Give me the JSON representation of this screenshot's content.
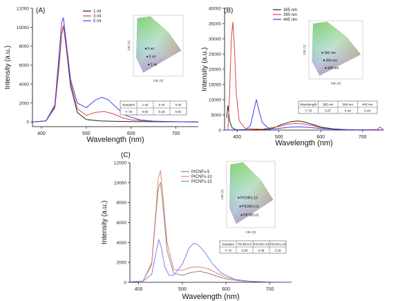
{
  "chart_data": [
    {
      "type": "line",
      "panel_label": "(A)",
      "xlabel": "Wavelength (nm)",
      "ylabel": "Intensity (a.u.)",
      "xlim": [
        380,
        750
      ],
      "ylim": [
        -500,
        12000
      ],
      "xticks": [
        400,
        500,
        600,
        700
      ],
      "yticks": [
        0,
        2000,
        4000,
        6000,
        8000,
        10000,
        12000
      ],
      "legend_position": "top-right",
      "series": [
        {
          "name": "1 ml",
          "color": "#222222",
          "x": [
            380,
            410,
            430,
            440,
            445,
            449,
            455,
            465,
            480,
            500,
            530,
            560,
            600,
            650,
            700,
            750
          ],
          "y": [
            0,
            100,
            1500,
            6200,
            9300,
            10100,
            8000,
            3800,
            1000,
            250,
            100,
            60,
            30,
            20,
            10,
            0
          ]
        },
        {
          "name": "3 ml",
          "color": "#e34040",
          "x": [
            380,
            410,
            430,
            440,
            445,
            449,
            455,
            465,
            480,
            500,
            520,
            540,
            560,
            580,
            600,
            650,
            700,
            750
          ],
          "y": [
            0,
            100,
            1600,
            6500,
            9400,
            10200,
            8200,
            4200,
            1400,
            700,
            1000,
            1100,
            850,
            450,
            200,
            60,
            20,
            0
          ]
        },
        {
          "name": "5 ml",
          "color": "#3c3cf0",
          "x": [
            380,
            410,
            430,
            440,
            445,
            449,
            455,
            465,
            480,
            500,
            520,
            535,
            550,
            570,
            590,
            620,
            650,
            700,
            750
          ],
          "y": [
            0,
            100,
            1800,
            7500,
            10500,
            11000,
            8600,
            4500,
            2000,
            1500,
            2300,
            2600,
            2300,
            1400,
            650,
            200,
            80,
            20,
            0
          ]
        }
      ],
      "inset": {
        "xlabel": "CIE (X)",
        "ylabel": "CIE (Y)",
        "points": [
          {
            "label": "5 ml"
          },
          {
            "label": "3 ml"
          },
          {
            "label": "1 ml"
          }
        ]
      },
      "table": {
        "header": [
          "Samples",
          "1 ml",
          "3 ml",
          "5 ml"
        ],
        "row": [
          "Y / B",
          "0.04",
          "0.43",
          "0.81"
        ]
      }
    },
    {
      "type": "line",
      "panel_label": "(B)",
      "xlabel": "Wavelength (nm)",
      "ylabel": "Intensity (a.u.)",
      "xlim": [
        370,
        750
      ],
      "ylim": [
        0,
        40000
      ],
      "xticks": [
        400,
        500,
        600,
        700
      ],
      "yticks": [
        0,
        5000,
        10000,
        15000,
        20000,
        25000,
        30000,
        35000,
        40000
      ],
      "legend_position": "top-right",
      "series": [
        {
          "name": "365 nm",
          "color": "#222222",
          "x": [
            375,
            378,
            382,
            388,
            395,
            410,
            440,
            480,
            510,
            530,
            545,
            560,
            580,
            600,
            630,
            660,
            700,
            740,
            750
          ],
          "y": [
            4000,
            8000,
            3000,
            800,
            200,
            100,
            80,
            300,
            2000,
            2800,
            3000,
            2700,
            1900,
            1000,
            400,
            150,
            80,
            40,
            30
          ]
        },
        {
          "name": "390 nm",
          "color": "#e34040",
          "x": [
            378,
            382,
            386,
            390,
            394,
            398,
            405,
            420,
            460,
            500,
            520,
            540,
            560,
            580,
            600,
            630,
            660,
            700,
            735,
            742,
            750
          ],
          "y": [
            0,
            12000,
            30000,
            35500,
            26000,
            12000,
            3000,
            500,
            300,
            1200,
            1900,
            2200,
            2000,
            1500,
            800,
            300,
            100,
            50,
            200,
            1000,
            150
          ]
        },
        {
          "name": "445 nm",
          "color": "#3c3cf0",
          "x": [
            375,
            390,
            420,
            432,
            440,
            446,
            452,
            460,
            475,
            490,
            510,
            530,
            550,
            570,
            600,
            640,
            700,
            750
          ],
          "y": [
            0,
            50,
            200,
            1500,
            6500,
            10000,
            6500,
            2500,
            600,
            400,
            700,
            1000,
            1100,
            900,
            500,
            200,
            60,
            0
          ]
        }
      ],
      "inset": {
        "xlabel": "CIE (X)",
        "ylabel": "CIE (Y)",
        "points": [
          {
            "label": "365 nm"
          },
          {
            "label": "390 nm"
          },
          {
            "label": "445 nm"
          }
        ]
      },
      "table": {
        "header": [
          "Wavelength",
          "365 nm",
          "390 nm",
          "445 nm"
        ],
        "row": [
          "Y / B",
          "5.67",
          "0.44",
          "0.43"
        ]
      }
    },
    {
      "type": "line",
      "panel_label": "(C)",
      "xlabel": "Wavelength (nm)",
      "ylabel": "Intensity (a.u.)",
      "xlim": [
        380,
        750
      ],
      "ylim": [
        0,
        12000
      ],
      "xticks": [
        400,
        500,
        600,
        700
      ],
      "yticks": [
        0,
        2000,
        4000,
        6000,
        8000,
        10000,
        12000
      ],
      "legend_position": "top-right",
      "series": [
        {
          "name": "PICNFs-5",
          "color": "#888888",
          "x": [
            380,
            410,
            430,
            440,
            445,
            450,
            455,
            465,
            480,
            500,
            520,
            540,
            560,
            580,
            600,
            630,
            650,
            700,
            750
          ],
          "y": [
            50,
            120,
            1800,
            7000,
            9400,
            10000,
            8000,
            3200,
            900,
            700,
            1000,
            1100,
            900,
            600,
            350,
            150,
            90,
            30,
            20
          ]
        },
        {
          "name": "PICNFs-10",
          "color": "#f08070",
          "x": [
            380,
            410,
            430,
            440,
            445,
            450,
            455,
            465,
            480,
            500,
            520,
            540,
            560,
            580,
            600,
            630,
            650,
            700,
            750
          ],
          "y": [
            50,
            130,
            2000,
            7500,
            10500,
            11200,
            9000,
            4000,
            1300,
            1200,
            1500,
            1550,
            1350,
            900,
            500,
            200,
            120,
            40,
            20
          ]
        },
        {
          "name": "PICNFs-15",
          "color": "#8080f0",
          "x": [
            380,
            410,
            430,
            440,
            446,
            452,
            460,
            470,
            480,
            500,
            515,
            525,
            535,
            550,
            570,
            590,
            620,
            650,
            700,
            750
          ],
          "y": [
            50,
            120,
            800,
            3000,
            4300,
            3500,
            1500,
            700,
            700,
            1800,
            3400,
            3900,
            3800,
            3100,
            1800,
            900,
            300,
            120,
            40,
            20
          ]
        }
      ],
      "inset": {
        "xlabel": "CIE (X)",
        "ylabel": "CIE (Y)",
        "points": [
          {
            "label": "PICNFs-15"
          },
          {
            "label": "PICNFs-10"
          },
          {
            "label": "PICNFs-5"
          }
        ]
      },
      "table": {
        "header": [
          "Samples",
          "PICNFs-5",
          "PICNFs-10",
          "PICNFs-15"
        ],
        "row": [
          "Y / B",
          "0.63",
          "0.49",
          "3.19"
        ]
      }
    }
  ]
}
